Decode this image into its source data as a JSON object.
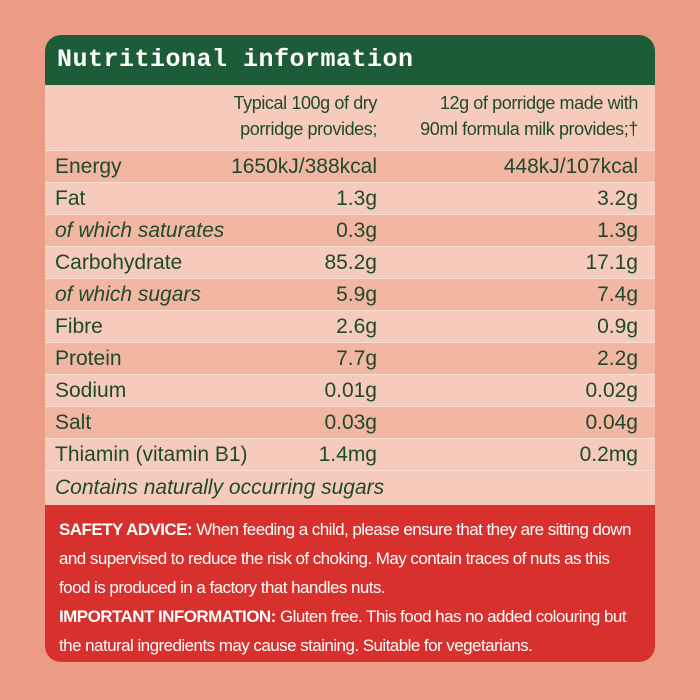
{
  "header": {
    "title": "Nutritional information"
  },
  "table": {
    "columns": [
      [
        "Typical 100g of dry",
        "porridge provides;"
      ],
      [
        "12g of porridge made with",
        "90ml formula milk provides;†"
      ]
    ],
    "rows": [
      {
        "cells": [
          "Energy",
          "1650kJ/388kcal",
          "448kJ/107kcal"
        ]
      },
      {
        "cells": [
          "Fat",
          "1.3g",
          "3.2g"
        ]
      },
      {
        "cells": [
          "of which saturates",
          "0.3g",
          "1.3g"
        ],
        "italic": true
      },
      {
        "cells": [
          "Carbohydrate",
          "85.2g",
          "17.1g"
        ]
      },
      {
        "cells": [
          "of which sugars",
          "5.9g",
          "7.4g"
        ],
        "italic": true
      },
      {
        "cells": [
          "Fibre",
          "2.6g",
          "0.9g"
        ]
      },
      {
        "cells": [
          "Protein",
          "7.7g",
          "2.2g"
        ]
      },
      {
        "cells": [
          "Sodium",
          "0.01g",
          "0.02g"
        ]
      },
      {
        "cells": [
          "Salt",
          "0.03g",
          "0.04g"
        ]
      },
      {
        "cells": [
          "Thiamin (vitamin B1)",
          "1.4mg",
          "0.2mg"
        ]
      }
    ],
    "note": "Contains naturally occurring sugars"
  },
  "advice": [
    {
      "label": "SAFETY ADVICE:",
      "text": "When feeding a child, please ensure that they are sitting down and supervised to reduce the risk of choking. May contain traces of nuts as this food is produced in a factory that handles nuts."
    },
    {
      "label": "IMPORTANT INFORMATION:",
      "text": "Gluten free. This food has no added colouring but the natural ingredients may cause staining. Suitable for vegetarians."
    }
  ]
}
